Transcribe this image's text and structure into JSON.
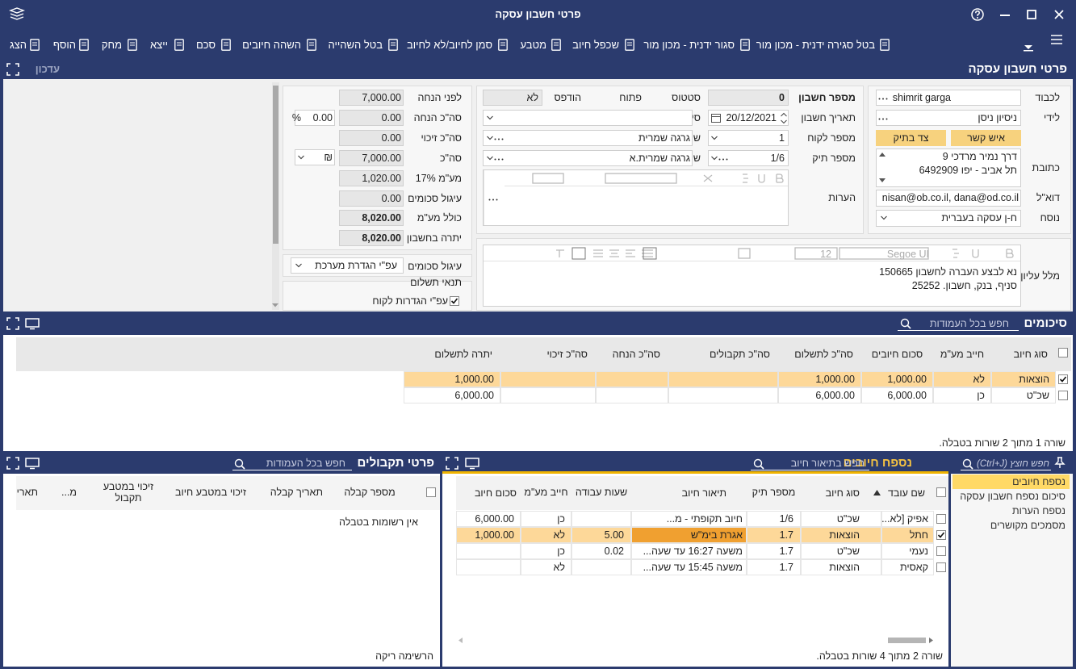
{
  "window": {
    "title": "פרטי חשבון עסקה"
  },
  "toolbar": [
    "בטל סגירה ידנית - מכון מור",
    "סגור ידנית - מכון מור",
    "שכפל חיוב",
    "מטבע",
    "סמן לחיוב/לא לחיוב",
    "בטל השהייה",
    "השהה חיובים",
    "סכם",
    "ייצא",
    "מחק",
    "הוסף",
    "הצג"
  ],
  "header": {
    "title": "פרטי חשבון עסקה",
    "mode": "עדכון"
  },
  "client": {
    "to": {
      "label": "לכבוד",
      "value": "shimrit garga"
    },
    "attention": {
      "label": "לידי",
      "value": "ניסיון  ניסן"
    },
    "buttons": [
      "איש קשר",
      "צד בתיק"
    ],
    "address": {
      "label": "כתובת",
      "lines": [
        "דרך נמיר מרדכי 9",
        "תל אביב - יפו 6492909"
      ]
    },
    "email": {
      "label": "דוא\"ל",
      "value": "nisan@ob.co.il, dana@od.co.il"
    },
    "template": {
      "label": "נוסח",
      "value": "ח-ן עסקה בעברית"
    }
  },
  "account": {
    "number": {
      "label": "מספר חשבון",
      "value": "0"
    },
    "status": {
      "label": "סטטוס",
      "value": "פתוח"
    },
    "printed": {
      "label": "הודפס",
      "value": "לא"
    },
    "date": {
      "label": "תאריך חשבון",
      "value": "20/12/2021"
    },
    "classification": {
      "label": "סיווג חשבון"
    },
    "client_number": {
      "label": "מספר לקוח",
      "value": "1"
    },
    "client_name": {
      "label": "שם לקוח",
      "value": "גרגה שמרית"
    },
    "case_number": {
      "label": "מספר תיק",
      "value": "1/6"
    },
    "case_name": {
      "label": "שם תיק",
      "value": "גרגה שמרית.א"
    },
    "notes": {
      "label": "הערות"
    },
    "header_text": {
      "label": "מלל עליון",
      "font": "Segoe UI",
      "font_size": "12",
      "lines": [
        "נא לבצע העברה לחשבון 150665",
        "סניף, בנק, חשבון. 25252"
      ]
    }
  },
  "totals": {
    "rows": [
      {
        "label": "לפני הנחה",
        "value": "7,000.00"
      },
      {
        "label": "סה\"כ הנחה",
        "value": "0.00"
      },
      {
        "label": "סה\"כ זיכוי",
        "value": "0.00"
      },
      {
        "label": "סה\"כ",
        "value": "7,000.00"
      },
      {
        "label": "מע\"מ 17%",
        "value": "1,020.00"
      },
      {
        "label": "עיגול סכומים",
        "value": "0.00"
      },
      {
        "label": "כולל מע\"מ",
        "value": "8,020.00"
      },
      {
        "label": "יתרה בחשבון",
        "value": "8,020.00"
      }
    ],
    "discount_percent": "0.00",
    "percent_sign": "%",
    "currency": "₪",
    "rounding": {
      "label": "עיגול סכומים",
      "value": "עפ\"י הגדרת מערכת"
    },
    "payment_terms": {
      "label": "תנאי תשלום",
      "option": "עפ\"י הגדרות לקוח",
      "checked": true
    }
  },
  "summary": {
    "title": "סיכומים",
    "search": "חפש בכל העמודות",
    "columns": [
      "סוג חיוב",
      "חייב מע\"מ",
      "סכום חיובים",
      "סה\"כ לתשלום",
      "סה\"כ תקבולים",
      "סה\"כ הנחה",
      "סה\"כ זיכוי",
      "יתרה לתשלום"
    ],
    "rows": [
      [
        "הוצאות",
        "לא",
        "1,000.00",
        "1,000.00",
        null,
        null,
        null,
        "1,000.00"
      ],
      [
        "שכ\"ט",
        "כן",
        "6,000.00",
        "6,000.00",
        null,
        null,
        null,
        "6,000.00"
      ]
    ],
    "selected_row": 0,
    "footer": "שורה 1 מתוך 2 שורות בטבלה."
  },
  "receipts": {
    "title": "פרטי תקבולים",
    "search": "חפש בכל העמודות",
    "columns": [
      "מספר קבלה",
      "תאריך קבלה",
      "זיכוי במטבע חיוב",
      "זיכוי במטבע תקבול",
      "מ...",
      "תארי"
    ],
    "empty": "אין רשומות בטבלה",
    "footer": "הרשימה ריקה"
  },
  "charges": {
    "title": "נספח חיובים",
    "search": "חפש בתיאור חיוב",
    "columns": [
      "שם עובד",
      "סוג חיוב",
      "מספר תיק",
      "תיאור חיוב",
      "שעות עבודה",
      "חייב מע\"מ",
      "סכום חיוב"
    ],
    "rows": [
      [
        "אפיק [לא...",
        "שכ\"ט",
        "1/6",
        "חיוב תקופתי - מ...",
        null,
        "כן",
        "6,000.00"
      ],
      [
        "חתל",
        "הוצאות",
        "1.7",
        "אגרת בימ\"ש",
        "5.00",
        "לא",
        "1,000.00"
      ],
      [
        "נעמי",
        "שכ\"ט",
        "1.7",
        "משעה 16:27 עד שעה...",
        "0.02",
        "כן",
        null
      ],
      [
        "קאסית",
        "הוצאות",
        "1.7",
        "משעה 15:45 עד שעה...",
        null,
        "לא",
        null
      ]
    ],
    "selected_row": 1,
    "footer": "שורה 2 מתוך 4 שורות בטבלה."
  },
  "tabs": {
    "search": "חפש חוצץ (Ctrl+J)",
    "items": [
      "נספח חיובים",
      "סיכום נספח חשבון עסקה",
      "נספח הערות",
      "מסמכים מקושרים"
    ],
    "selected": 0
  }
}
